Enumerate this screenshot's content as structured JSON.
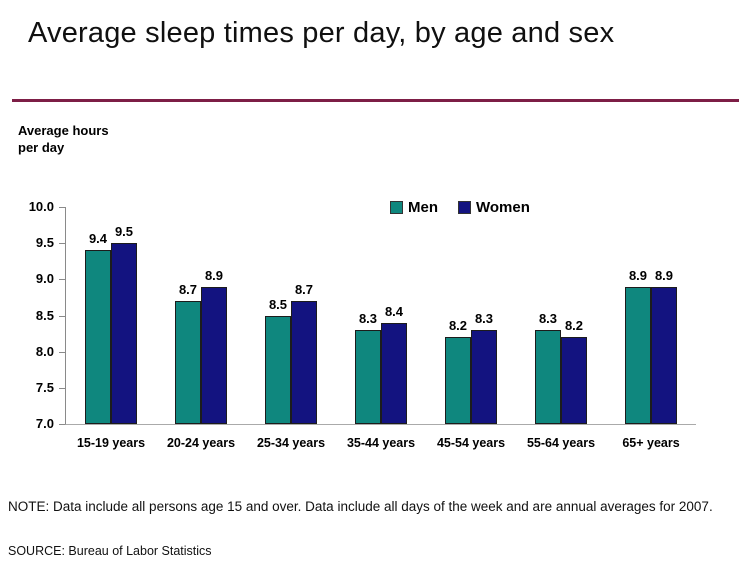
{
  "page": {
    "title": "Average sleep times per day, by age and sex",
    "note": "NOTE: Data include all persons age 15 and over. Data include all days of the week and are annual averages for 2007.",
    "source": "SOURCE: Bureau of Labor Statistics",
    "accent_rule_color": "#7d1e46"
  },
  "chart_data": {
    "type": "bar",
    "title": "Average sleep times per day, by age and sex",
    "ylabel_line1": "Average hours",
    "ylabel_line2": "per day",
    "categories": [
      "15-19 years",
      "20-24 years",
      "25-34 years",
      "35-44 years",
      "45-54 years",
      "55-64 years",
      "65+ years"
    ],
    "series": [
      {
        "name": "Men",
        "color": "#0f877e",
        "values": [
          9.4,
          8.7,
          8.5,
          8.3,
          8.2,
          8.3,
          8.9
        ]
      },
      {
        "name": "Women",
        "color": "#131380",
        "values": [
          9.5,
          8.9,
          8.7,
          8.4,
          8.3,
          8.2,
          8.9
        ]
      }
    ],
    "ylim": [
      7.0,
      10.0
    ],
    "y_ticks": [
      "10.0",
      "9.5",
      "9.0",
      "8.5",
      "8.0",
      "7.5",
      "7.0"
    ],
    "value_labels": true,
    "grid": false,
    "legend_position": "top-center-inside",
    "axis_color": "#8a8a8a"
  }
}
